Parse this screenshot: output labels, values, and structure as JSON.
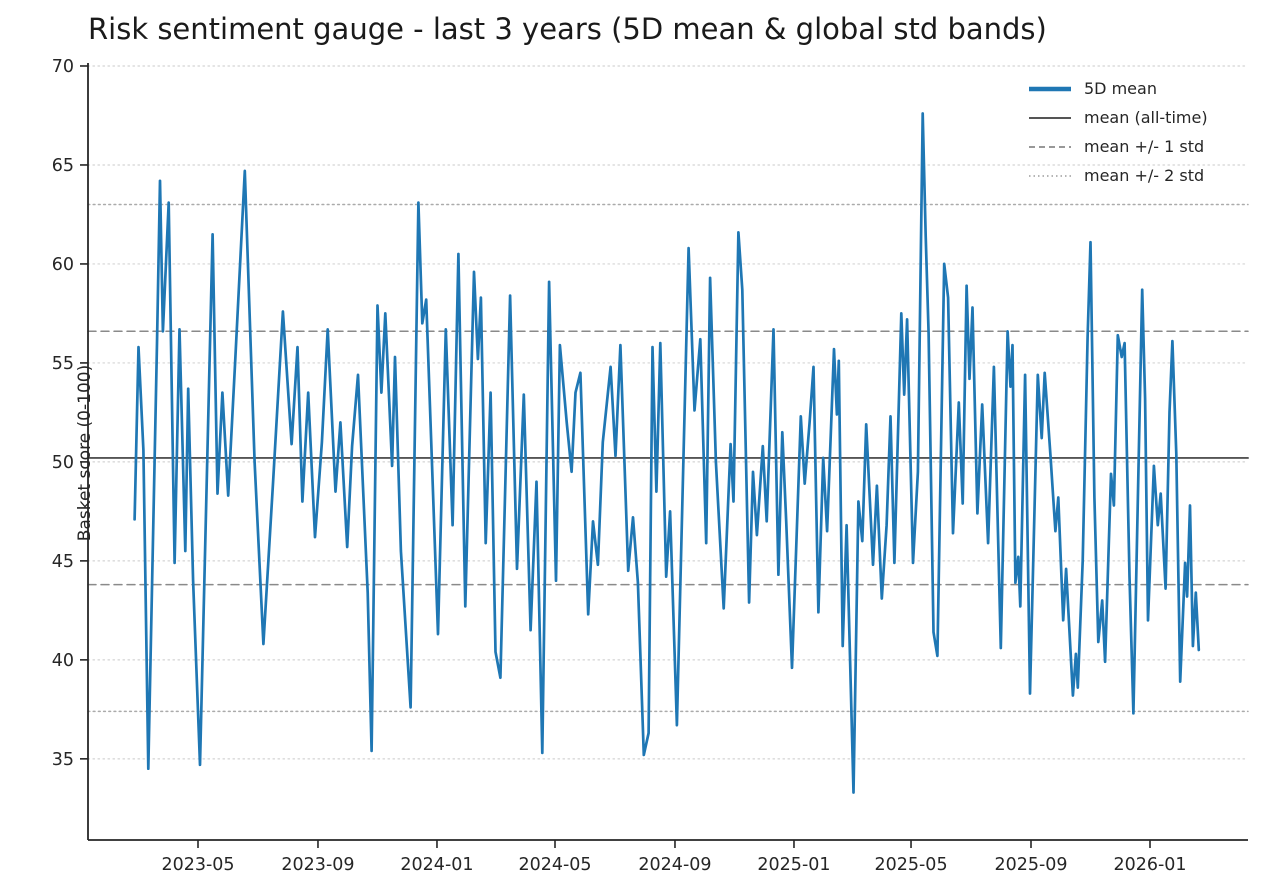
{
  "style": {
    "line": "#1f77b4",
    "mean_line": "#555555",
    "band1_line": "#8a8a8a",
    "band2_line": "#ababab",
    "grid": "#d4d4d4",
    "axis": "#262626",
    "text": "#262626",
    "background": "#ffffff"
  },
  "legend": [
    {
      "label": "5D mean",
      "style": "blue"
    },
    {
      "label": "mean (all-time)",
      "style": "solid"
    },
    {
      "label": "mean +/- 1 std",
      "style": "dashed"
    },
    {
      "label": "mean +/- 2 std",
      "style": "dotted"
    }
  ],
  "chart_data": {
    "type": "line",
    "title": "Risk sentiment gauge - last 3 years (5D mean & global std bands)",
    "xlabel": "",
    "ylabel": "Basket score (0-100)",
    "ylim": [
      30.9,
      70.05
    ],
    "grid": true,
    "legend_position": "upper right",
    "yticks": [
      35,
      40,
      45,
      50,
      55,
      60,
      65,
      70
    ],
    "xticks": [
      {
        "label": "2023-05",
        "date": "2023-05-01"
      },
      {
        "label": "2023-09",
        "date": "2023-09-01"
      },
      {
        "label": "2024-01",
        "date": "2024-01-01"
      },
      {
        "label": "2024-05",
        "date": "2024-05-01"
      },
      {
        "label": "2024-09",
        "date": "2024-09-01"
      },
      {
        "label": "2025-01",
        "date": "2025-01-01"
      },
      {
        "label": "2025-05",
        "date": "2025-05-01"
      },
      {
        "label": "2025-09",
        "date": "2025-09-01"
      },
      {
        "label": "2026-01",
        "date": "2026-01-01"
      }
    ],
    "stats": {
      "mean_all_time": 50.2,
      "std_all_time": 6.4,
      "mean_plus_1std": 56.6,
      "mean_minus_1std": 43.8,
      "mean_plus_2std": 63.0,
      "mean_minus_2std": 37.4
    },
    "reference_lines": [
      {
        "name": "mean (all-time)",
        "value": 50.2,
        "style": "solid"
      },
      {
        "name": "mean + 1 std",
        "value": 56.6,
        "style": "dashed"
      },
      {
        "name": "mean - 1 std",
        "value": 43.8,
        "style": "dashed"
      },
      {
        "name": "mean + 2 std",
        "value": 63.0,
        "style": "dotted"
      },
      {
        "name": "mean - 2 std",
        "value": 37.4,
        "style": "dotted"
      }
    ],
    "series": [
      {
        "name": "5D mean",
        "points": [
          [
            "2023-02-25",
            47.1
          ],
          [
            "2023-03-01",
            55.8
          ],
          [
            "2023-03-06",
            50.6
          ],
          [
            "2023-03-11",
            34.5
          ],
          [
            "2023-03-20",
            56.0
          ],
          [
            "2023-03-23",
            64.2
          ],
          [
            "2023-03-26",
            56.6
          ],
          [
            "2023-04-01",
            63.1
          ],
          [
            "2023-04-07",
            44.9
          ],
          [
            "2023-04-12",
            56.7
          ],
          [
            "2023-04-18",
            45.5
          ],
          [
            "2023-04-21",
            53.7
          ],
          [
            "2023-04-26",
            44.0
          ],
          [
            "2023-05-03",
            34.7
          ],
          [
            "2023-05-16",
            61.5
          ],
          [
            "2023-05-21",
            48.4
          ],
          [
            "2023-05-26",
            53.5
          ],
          [
            "2023-06-01",
            48.3
          ],
          [
            "2023-06-08",
            55.0
          ],
          [
            "2023-06-18",
            64.7
          ],
          [
            "2023-06-28",
            50.0
          ],
          [
            "2023-07-07",
            40.8
          ],
          [
            "2023-07-17",
            49.0
          ],
          [
            "2023-07-27",
            57.6
          ],
          [
            "2023-08-05",
            50.9
          ],
          [
            "2023-08-11",
            55.8
          ],
          [
            "2023-08-16",
            48.0
          ],
          [
            "2023-08-22",
            53.5
          ],
          [
            "2023-08-29",
            46.2
          ],
          [
            "2023-09-05",
            51.0
          ],
          [
            "2023-09-11",
            56.7
          ],
          [
            "2023-09-19",
            48.5
          ],
          [
            "2023-09-24",
            52.0
          ],
          [
            "2023-10-01",
            45.7
          ],
          [
            "2023-10-06",
            50.8
          ],
          [
            "2023-10-12",
            54.4
          ],
          [
            "2023-10-22",
            43.4
          ],
          [
            "2023-10-26",
            35.4
          ],
          [
            "2023-11-01",
            57.9
          ],
          [
            "2023-11-05",
            53.5
          ],
          [
            "2023-11-09",
            57.5
          ],
          [
            "2023-11-16",
            49.8
          ],
          [
            "2023-11-19",
            55.3
          ],
          [
            "2023-11-25",
            45.5
          ],
          [
            "2023-12-05",
            37.6
          ],
          [
            "2023-12-13",
            63.1
          ],
          [
            "2023-12-17",
            57.0
          ],
          [
            "2023-12-21",
            58.2
          ],
          [
            "2024-01-02",
            41.3
          ],
          [
            "2024-01-10",
            56.7
          ],
          [
            "2024-01-17",
            46.8
          ],
          [
            "2024-01-23",
            60.5
          ],
          [
            "2024-01-30",
            42.7
          ],
          [
            "2024-02-08",
            59.6
          ],
          [
            "2024-02-12",
            55.2
          ],
          [
            "2024-02-15",
            58.3
          ],
          [
            "2024-02-20",
            45.9
          ],
          [
            "2024-02-25",
            53.5
          ],
          [
            "2024-03-01",
            40.4
          ],
          [
            "2024-03-06",
            39.1
          ],
          [
            "2024-03-16",
            58.4
          ],
          [
            "2024-03-23",
            44.6
          ],
          [
            "2024-03-30",
            53.4
          ],
          [
            "2024-04-06",
            41.5
          ],
          [
            "2024-04-12",
            49.0
          ],
          [
            "2024-04-18",
            35.3
          ],
          [
            "2024-04-25",
            59.1
          ],
          [
            "2024-05-02",
            44.0
          ],
          [
            "2024-05-06",
            55.9
          ],
          [
            "2024-05-13",
            52.0
          ],
          [
            "2024-05-18",
            49.5
          ],
          [
            "2024-05-22",
            53.5
          ],
          [
            "2024-05-27",
            54.5
          ],
          [
            "2024-06-04",
            42.3
          ],
          [
            "2024-06-09",
            47.0
          ],
          [
            "2024-06-14",
            44.8
          ],
          [
            "2024-06-19",
            51.0
          ],
          [
            "2024-06-27",
            54.8
          ],
          [
            "2024-07-02",
            50.3
          ],
          [
            "2024-07-07",
            55.9
          ],
          [
            "2024-07-15",
            44.5
          ],
          [
            "2024-07-20",
            47.2
          ],
          [
            "2024-07-25",
            43.9
          ],
          [
            "2024-07-31",
            35.2
          ],
          [
            "2024-08-05",
            36.3
          ],
          [
            "2024-08-09",
            55.8
          ],
          [
            "2024-08-13",
            48.5
          ],
          [
            "2024-08-17",
            56.0
          ],
          [
            "2024-08-23",
            44.2
          ],
          [
            "2024-08-27",
            47.5
          ],
          [
            "2024-09-03",
            36.7
          ],
          [
            "2024-09-15",
            60.8
          ],
          [
            "2024-09-21",
            52.6
          ],
          [
            "2024-09-27",
            56.2
          ],
          [
            "2024-10-03",
            45.9
          ],
          [
            "2024-10-07",
            59.3
          ],
          [
            "2024-10-13",
            50.0
          ],
          [
            "2024-10-21",
            42.6
          ],
          [
            "2024-10-28",
            50.9
          ],
          [
            "2024-10-31",
            48.0
          ],
          [
            "2024-11-05",
            61.6
          ],
          [
            "2024-11-09",
            58.7
          ],
          [
            "2024-11-16",
            42.9
          ],
          [
            "2024-11-20",
            49.5
          ],
          [
            "2024-11-24",
            46.3
          ],
          [
            "2024-11-30",
            50.8
          ],
          [
            "2024-12-04",
            47.0
          ],
          [
            "2024-12-11",
            56.7
          ],
          [
            "2024-12-16",
            44.3
          ],
          [
            "2024-12-20",
            51.5
          ],
          [
            "2024-12-24",
            47.0
          ],
          [
            "2024-12-30",
            39.6
          ],
          [
            "2025-01-08",
            52.3
          ],
          [
            "2025-01-12",
            48.9
          ],
          [
            "2025-01-17",
            52.0
          ],
          [
            "2025-01-21",
            54.8
          ],
          [
            "2025-01-26",
            42.4
          ],
          [
            "2025-01-31",
            50.2
          ],
          [
            "2025-02-04",
            46.5
          ],
          [
            "2025-02-11",
            55.7
          ],
          [
            "2025-02-14",
            52.4
          ],
          [
            "2025-02-16",
            55.1
          ],
          [
            "2025-02-20",
            40.7
          ],
          [
            "2025-02-24",
            46.8
          ],
          [
            "2025-03-03",
            33.3
          ],
          [
            "2025-03-08",
            48.0
          ],
          [
            "2025-03-12",
            46.0
          ],
          [
            "2025-03-16",
            51.9
          ],
          [
            "2025-03-23",
            44.8
          ],
          [
            "2025-03-27",
            48.8
          ],
          [
            "2025-04-01",
            43.1
          ],
          [
            "2025-04-06",
            46.8
          ],
          [
            "2025-04-10",
            52.3
          ],
          [
            "2025-04-14",
            44.9
          ],
          [
            "2025-04-21",
            57.5
          ],
          [
            "2025-04-24",
            53.4
          ],
          [
            "2025-04-27",
            57.2
          ],
          [
            "2025-05-03",
            44.9
          ],
          [
            "2025-05-08",
            49.5
          ],
          [
            "2025-05-13",
            67.6
          ],
          [
            "2025-05-16",
            61.4
          ],
          [
            "2025-05-19",
            56.5
          ],
          [
            "2025-05-24",
            41.4
          ],
          [
            "2025-05-28",
            40.2
          ],
          [
            "2025-06-04",
            60.0
          ],
          [
            "2025-06-08",
            58.3
          ],
          [
            "2025-06-13",
            46.4
          ],
          [
            "2025-06-19",
            53.0
          ],
          [
            "2025-06-23",
            47.9
          ],
          [
            "2025-06-27",
            58.9
          ],
          [
            "2025-06-30",
            54.2
          ],
          [
            "2025-07-03",
            57.8
          ],
          [
            "2025-07-08",
            47.4
          ],
          [
            "2025-07-13",
            52.9
          ],
          [
            "2025-07-19",
            45.9
          ],
          [
            "2025-07-25",
            54.8
          ],
          [
            "2025-08-01",
            40.6
          ],
          [
            "2025-08-08",
            56.6
          ],
          [
            "2025-08-11",
            53.8
          ],
          [
            "2025-08-13",
            55.9
          ],
          [
            "2025-08-16",
            43.9
          ],
          [
            "2025-08-19",
            45.2
          ],
          [
            "2025-08-21",
            42.7
          ],
          [
            "2025-08-26",
            54.4
          ],
          [
            "2025-08-31",
            38.3
          ],
          [
            "2025-09-08",
            54.4
          ],
          [
            "2025-09-12",
            51.2
          ],
          [
            "2025-09-15",
            54.5
          ],
          [
            "2025-09-21",
            50.3
          ],
          [
            "2025-09-26",
            46.5
          ],
          [
            "2025-09-29",
            48.2
          ],
          [
            "2025-10-04",
            42.0
          ],
          [
            "2025-10-07",
            44.6
          ],
          [
            "2025-10-14",
            38.2
          ],
          [
            "2025-10-17",
            40.3
          ],
          [
            "2025-10-19",
            38.6
          ],
          [
            "2025-10-24",
            45.0
          ],
          [
            "2025-10-29",
            56.3
          ],
          [
            "2025-11-01",
            61.1
          ],
          [
            "2025-11-05",
            48.2
          ],
          [
            "2025-11-09",
            40.9
          ],
          [
            "2025-11-13",
            43.0
          ],
          [
            "2025-11-16",
            39.9
          ],
          [
            "2025-11-22",
            49.4
          ],
          [
            "2025-11-25",
            47.8
          ],
          [
            "2025-11-29",
            56.4
          ],
          [
            "2025-12-03",
            55.3
          ],
          [
            "2025-12-06",
            56.0
          ],
          [
            "2025-12-11",
            44.2
          ],
          [
            "2025-12-15",
            37.3
          ],
          [
            "2025-12-24",
            58.7
          ],
          [
            "2025-12-27",
            53.2
          ],
          [
            "2025-12-30",
            42.0
          ],
          [
            "2026-01-05",
            49.8
          ],
          [
            "2026-01-09",
            46.8
          ],
          [
            "2026-01-12",
            48.4
          ],
          [
            "2026-01-17",
            43.6
          ],
          [
            "2026-01-21",
            52.5
          ],
          [
            "2026-01-24",
            56.1
          ],
          [
            "2026-01-28",
            50.4
          ],
          [
            "2026-02-01",
            38.9
          ],
          [
            "2026-02-06",
            44.9
          ],
          [
            "2026-02-08",
            43.2
          ],
          [
            "2026-02-11",
            47.8
          ],
          [
            "2026-02-14",
            40.7
          ],
          [
            "2026-02-17",
            43.4
          ],
          [
            "2026-02-20",
            40.5
          ]
        ]
      }
    ]
  }
}
